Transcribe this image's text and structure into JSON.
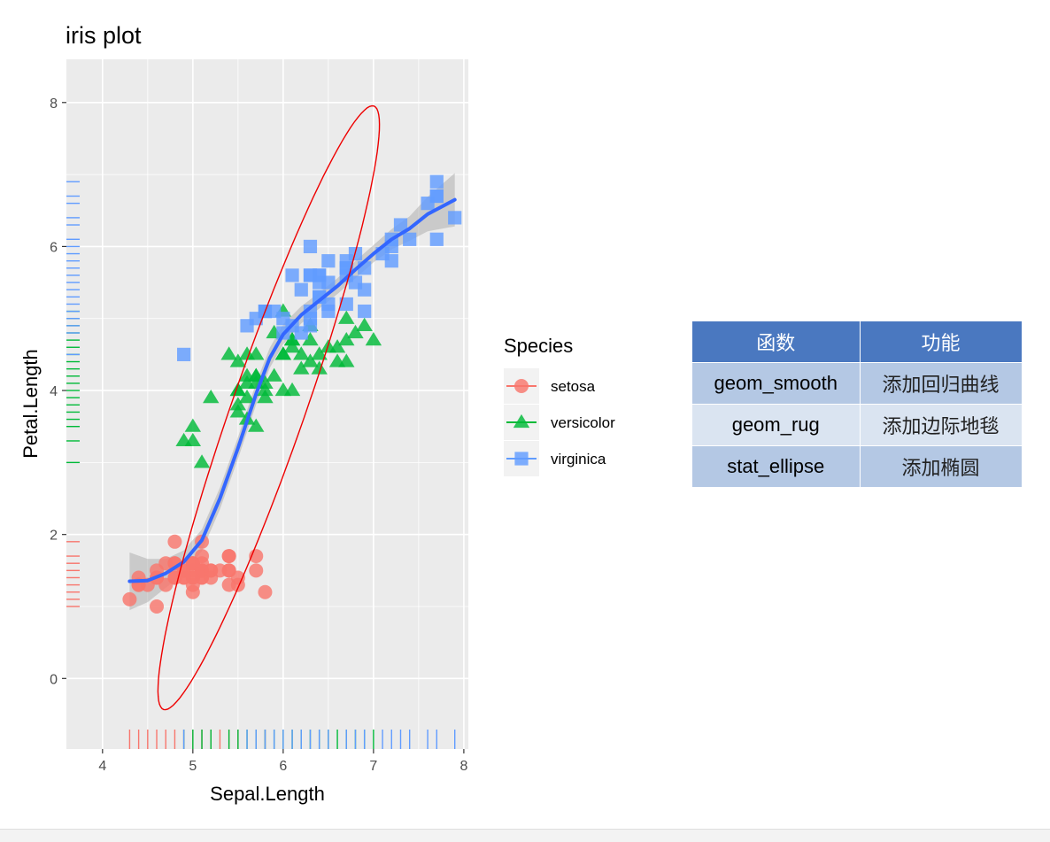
{
  "colors": {
    "setosa": "#f8766d",
    "versicolor": "#00ba38",
    "virginica": "#619cff",
    "smooth_line": "#3366ff",
    "ellipse": "#ee0000",
    "ribbon": "#999999",
    "panel": "#ebebeb",
    "table_header": "#4a78c0",
    "table_row_odd": "#b4c8e4",
    "table_row_even": "#dae4f1"
  },
  "chart_data": {
    "type": "scatter",
    "title": "iris plot",
    "xlabel": "Sepal.Length",
    "ylabel": "Petal.Length",
    "xlim": [
      3.6,
      8.05
    ],
    "ylim": [
      -0.98,
      8.6
    ],
    "x_ticks": [
      4,
      5,
      6,
      7,
      8
    ],
    "y_ticks": [
      0,
      2,
      4,
      6,
      8
    ],
    "grid": true,
    "legend": {
      "title": "Species",
      "position": "right",
      "entries": [
        {
          "name": "setosa",
          "shape": "circle"
        },
        {
          "name": "versicolor",
          "shape": "triangle"
        },
        {
          "name": "virginica",
          "shape": "square"
        }
      ]
    },
    "series": [
      {
        "name": "setosa",
        "points": [
          [
            5.1,
            1.4
          ],
          [
            4.9,
            1.4
          ],
          [
            4.7,
            1.3
          ],
          [
            4.6,
            1.5
          ],
          [
            5.0,
            1.4
          ],
          [
            5.4,
            1.7
          ],
          [
            4.6,
            1.4
          ],
          [
            5.0,
            1.5
          ],
          [
            4.4,
            1.4
          ],
          [
            4.9,
            1.5
          ],
          [
            5.4,
            1.5
          ],
          [
            4.8,
            1.6
          ],
          [
            4.8,
            1.4
          ],
          [
            4.3,
            1.1
          ],
          [
            5.8,
            1.2
          ],
          [
            5.7,
            1.5
          ],
          [
            5.4,
            1.3
          ],
          [
            5.1,
            1.4
          ],
          [
            5.7,
            1.7
          ],
          [
            5.1,
            1.5
          ],
          [
            5.4,
            1.7
          ],
          [
            5.1,
            1.5
          ],
          [
            4.6,
            1.0
          ],
          [
            5.1,
            1.7
          ],
          [
            4.8,
            1.9
          ],
          [
            5.0,
            1.6
          ],
          [
            5.0,
            1.6
          ],
          [
            5.2,
            1.5
          ],
          [
            5.2,
            1.4
          ],
          [
            4.7,
            1.6
          ],
          [
            4.8,
            1.6
          ],
          [
            5.4,
            1.5
          ],
          [
            5.2,
            1.5
          ],
          [
            5.5,
            1.4
          ],
          [
            4.9,
            1.5
          ],
          [
            5.0,
            1.2
          ],
          [
            5.5,
            1.3
          ],
          [
            4.9,
            1.4
          ],
          [
            4.4,
            1.3
          ],
          [
            5.1,
            1.5
          ],
          [
            5.0,
            1.3
          ],
          [
            4.5,
            1.3
          ],
          [
            4.4,
            1.3
          ],
          [
            5.0,
            1.6
          ],
          [
            5.1,
            1.9
          ],
          [
            4.8,
            1.4
          ],
          [
            5.1,
            1.6
          ],
          [
            4.6,
            1.4
          ],
          [
            5.3,
            1.5
          ],
          [
            5.0,
            1.4
          ]
        ]
      },
      {
        "name": "versicolor",
        "points": [
          [
            7.0,
            4.7
          ],
          [
            6.4,
            4.5
          ],
          [
            6.9,
            4.9
          ],
          [
            5.5,
            4.0
          ],
          [
            6.5,
            4.6
          ],
          [
            5.7,
            4.5
          ],
          [
            6.3,
            4.7
          ],
          [
            4.9,
            3.3
          ],
          [
            6.6,
            4.6
          ],
          [
            5.2,
            3.9
          ],
          [
            5.0,
            3.5
          ],
          [
            5.9,
            4.2
          ],
          [
            6.0,
            4.0
          ],
          [
            6.1,
            4.7
          ],
          [
            5.6,
            3.6
          ],
          [
            6.7,
            4.4
          ],
          [
            5.6,
            4.5
          ],
          [
            5.8,
            4.1
          ],
          [
            6.2,
            4.5
          ],
          [
            5.6,
            3.9
          ],
          [
            5.9,
            4.8
          ],
          [
            6.1,
            4.0
          ],
          [
            6.3,
            4.9
          ],
          [
            6.1,
            4.7
          ],
          [
            6.4,
            4.3
          ],
          [
            6.6,
            4.4
          ],
          [
            6.8,
            4.8
          ],
          [
            6.7,
            5.0
          ],
          [
            6.0,
            4.5
          ],
          [
            5.7,
            3.5
          ],
          [
            5.5,
            3.8
          ],
          [
            5.5,
            3.7
          ],
          [
            5.8,
            3.9
          ],
          [
            6.0,
            5.1
          ],
          [
            5.4,
            4.5
          ],
          [
            6.0,
            4.5
          ],
          [
            6.7,
            4.7
          ],
          [
            6.3,
            4.4
          ],
          [
            5.6,
            4.1
          ],
          [
            5.5,
            4.0
          ],
          [
            5.5,
            4.4
          ],
          [
            6.1,
            4.6
          ],
          [
            5.8,
            4.0
          ],
          [
            5.0,
            3.3
          ],
          [
            5.6,
            4.2
          ],
          [
            5.7,
            4.2
          ],
          [
            5.7,
            4.2
          ],
          [
            6.2,
            4.3
          ],
          [
            5.1,
            3.0
          ],
          [
            5.7,
            4.1
          ]
        ]
      },
      {
        "name": "virginica",
        "points": [
          [
            6.3,
            6.0
          ],
          [
            5.8,
            5.1
          ],
          [
            7.1,
            5.9
          ],
          [
            6.3,
            5.6
          ],
          [
            6.5,
            5.8
          ],
          [
            7.6,
            6.6
          ],
          [
            4.9,
            4.5
          ],
          [
            7.3,
            6.3
          ],
          [
            6.7,
            5.8
          ],
          [
            7.2,
            6.1
          ],
          [
            6.5,
            5.1
          ],
          [
            6.4,
            5.3
          ],
          [
            6.8,
            5.5
          ],
          [
            5.7,
            5.0
          ],
          [
            5.8,
            5.1
          ],
          [
            6.4,
            5.3
          ],
          [
            6.5,
            5.5
          ],
          [
            7.7,
            6.7
          ],
          [
            7.7,
            6.9
          ],
          [
            6.0,
            5.0
          ],
          [
            6.9,
            5.7
          ],
          [
            5.6,
            4.9
          ],
          [
            7.7,
            6.7
          ],
          [
            6.3,
            4.9
          ],
          [
            6.7,
            5.7
          ],
          [
            7.2,
            6.0
          ],
          [
            6.2,
            4.8
          ],
          [
            6.1,
            4.9
          ],
          [
            6.4,
            5.6
          ],
          [
            7.2,
            5.8
          ],
          [
            7.4,
            6.1
          ],
          [
            7.9,
            6.4
          ],
          [
            6.4,
            5.6
          ],
          [
            6.3,
            5.1
          ],
          [
            6.1,
            5.6
          ],
          [
            7.7,
            6.1
          ],
          [
            6.3,
            5.6
          ],
          [
            6.4,
            5.5
          ],
          [
            6.0,
            4.8
          ],
          [
            6.9,
            5.4
          ],
          [
            6.7,
            5.6
          ],
          [
            6.9,
            5.1
          ],
          [
            5.8,
            5.1
          ],
          [
            6.8,
            5.9
          ],
          [
            6.7,
            5.7
          ],
          [
            6.7,
            5.2
          ],
          [
            6.3,
            5.0
          ],
          [
            6.5,
            5.2
          ],
          [
            6.2,
            5.4
          ],
          [
            5.9,
            5.1
          ]
        ]
      }
    ],
    "smooth": {
      "method": "loess",
      "points": [
        [
          4.3,
          1.35
        ],
        [
          4.5,
          1.36
        ],
        [
          4.7,
          1.46
        ],
        [
          4.9,
          1.62
        ],
        [
          5.1,
          1.92
        ],
        [
          5.3,
          2.5
        ],
        [
          5.5,
          3.2
        ],
        [
          5.7,
          3.95
        ],
        [
          5.85,
          4.45
        ],
        [
          6.0,
          4.78
        ],
        [
          6.2,
          5.05
        ],
        [
          6.4,
          5.25
        ],
        [
          6.6,
          5.45
        ],
        [
          6.8,
          5.68
        ],
        [
          7.0,
          5.9
        ],
        [
          7.2,
          6.1
        ],
        [
          7.4,
          6.25
        ],
        [
          7.6,
          6.45
        ],
        [
          7.9,
          6.65
        ]
      ],
      "band_halfwidth": [
        0.4,
        0.3,
        0.2,
        0.16,
        0.15,
        0.15,
        0.15,
        0.15,
        0.14,
        0.14,
        0.12,
        0.11,
        0.11,
        0.12,
        0.12,
        0.14,
        0.17,
        0.24,
        0.37
      ]
    },
    "ellipse": {
      "center": [
        5.84,
        3.76
      ],
      "semi_axes": [
        4.8,
        0.75
      ],
      "angle_deg": 60.5
    },
    "rug": {
      "x": {
        "setosa": [
          4.3,
          4.4,
          4.5,
          4.6,
          4.7,
          4.8,
          4.9,
          5.0,
          5.1,
          5.2,
          5.3,
          5.4,
          5.5,
          5.7,
          5.8
        ],
        "versicolor": [
          4.9,
          5.0,
          5.1,
          5.2,
          5.4,
          5.5,
          5.6,
          5.7,
          5.8,
          5.9,
          6.0,
          6.1,
          6.2,
          6.3,
          6.4,
          6.5,
          6.6,
          6.7,
          6.8,
          6.9,
          7.0
        ],
        "virginica": [
          4.9,
          5.6,
          5.7,
          5.8,
          5.9,
          6.0,
          6.1,
          6.2,
          6.3,
          6.4,
          6.5,
          6.7,
          6.8,
          6.9,
          7.1,
          7.2,
          7.3,
          7.4,
          7.6,
          7.7,
          7.9
        ]
      },
      "y": {
        "setosa": [
          1.0,
          1.1,
          1.2,
          1.3,
          1.4,
          1.5,
          1.6,
          1.7,
          1.9
        ],
        "versicolor": [
          3.0,
          3.3,
          3.5,
          3.6,
          3.7,
          3.8,
          3.9,
          4.0,
          4.1,
          4.2,
          4.3,
          4.4,
          4.5,
          4.6,
          4.7,
          4.8,
          4.9,
          5.0,
          5.1
        ],
        "virginica": [
          4.5,
          4.8,
          4.9,
          5.0,
          5.1,
          5.2,
          5.3,
          5.4,
          5.5,
          5.6,
          5.7,
          5.8,
          5.9,
          6.0,
          6.1,
          6.3,
          6.4,
          6.6,
          6.7,
          6.9
        ]
      }
    }
  },
  "table": {
    "headers": [
      "函数",
      "功能"
    ],
    "rows": [
      [
        "geom_smooth",
        "添加回归曲线"
      ],
      [
        "geom_rug",
        "添加边际地毯"
      ],
      [
        "stat_ellipse",
        "添加椭圆"
      ]
    ]
  }
}
